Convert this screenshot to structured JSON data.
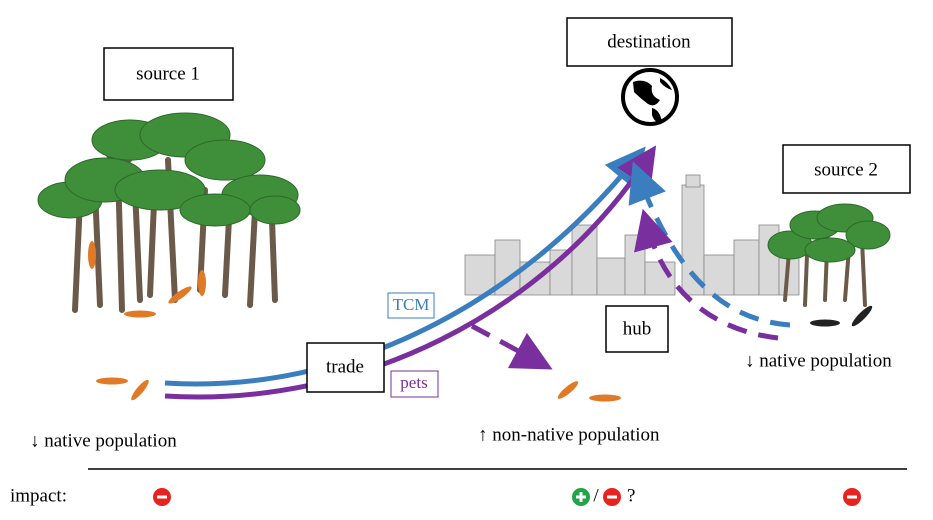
{
  "nodes": {
    "source_1": "source 1",
    "destination": "destination",
    "source_2": "source 2",
    "trade": "trade",
    "hub": "hub"
  },
  "routes": {
    "tcm": "TCM",
    "pets": "pets"
  },
  "populations": {
    "source_1": "↓ native population",
    "destination": "↑ non-native population",
    "source_2": "↓ native population"
  },
  "impact": {
    "label": "impact:",
    "separator": "/",
    "uncertain": "?"
  }
}
